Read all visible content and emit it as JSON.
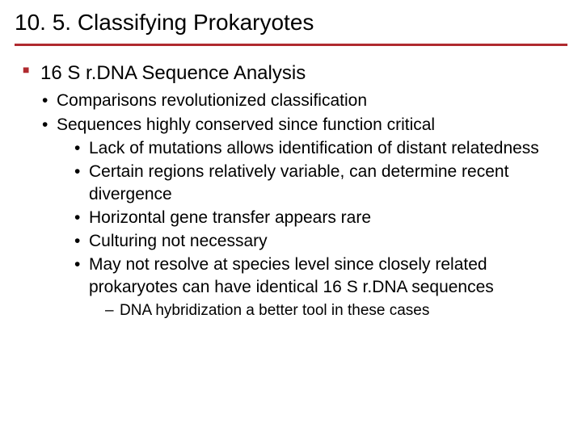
{
  "colors": {
    "accent": "#b02a2f",
    "text": "#000000",
    "background": "#ffffff"
  },
  "title": "10. 5. Classifying Prokaryotes",
  "l1": {
    "a": "16 S r.DNA Sequence Analysis"
  },
  "l2": {
    "a": "Comparisons revolutionized classification",
    "b": "Sequences highly conserved since function critical"
  },
  "l3": {
    "a": "Lack of mutations allows identification of distant relatedness",
    "b": "Certain regions relatively variable, can determine recent divergence",
    "c": "Horizontal gene transfer appears rare",
    "d": "Culturing not necessary",
    "e": "May not resolve at species level since closely related prokaryotes can have identical 16 S r.DNA sequences"
  },
  "l4": {
    "a": "DNA hybridization a better tool in these cases"
  }
}
